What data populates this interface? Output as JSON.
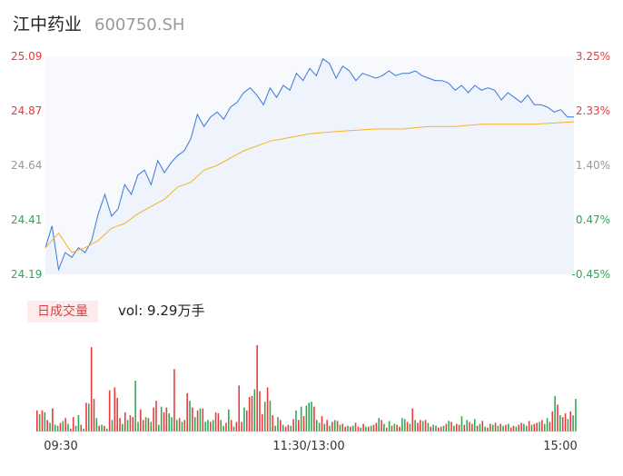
{
  "stock": {
    "name": "江中药业",
    "code": "600750.SH"
  },
  "volume_panel": {
    "tag_label": "日成交量",
    "vol_text": "vol: 9.29万手"
  },
  "colors": {
    "price_line": "#3a78d8",
    "avg_line": "#f5b324",
    "up": "#e8393c",
    "down": "#2fa84f",
    "neutral": "#999999"
  },
  "chart_data": [
    {
      "type": "line",
      "title": "",
      "x_ticks": [
        "09:30",
        "11:30/13:00",
        "15:00"
      ],
      "ylim": [
        24.19,
        25.09
      ],
      "y_ticks_left": [
        "25.09",
        "24.87",
        "24.64",
        "24.41",
        "24.19"
      ],
      "y_ticks_right": [
        "3.25%",
        "2.33%",
        "1.40%",
        "0.47%",
        "-0.45%"
      ],
      "grid": false,
      "series": [
        {
          "role": "price",
          "x": [
            0,
            3,
            6,
            9,
            12,
            15,
            18,
            21,
            24,
            27,
            30,
            33,
            36,
            39,
            42,
            45,
            48,
            51,
            54,
            57,
            60,
            63,
            66,
            69,
            72,
            75,
            78,
            81,
            84,
            87,
            90,
            93,
            96,
            99,
            102,
            105,
            108,
            111,
            114,
            117,
            120,
            123,
            126,
            129,
            132,
            135,
            138,
            141,
            144,
            147,
            150,
            153,
            156,
            159,
            162,
            165,
            168,
            171,
            174,
            177,
            180,
            183,
            186,
            189,
            192,
            195,
            198,
            201,
            204,
            207,
            210,
            213,
            216,
            219,
            222,
            225,
            228,
            231,
            234,
            237,
            240
          ],
          "y": [
            24.3,
            24.39,
            24.21,
            24.28,
            24.26,
            24.3,
            24.28,
            24.33,
            24.44,
            24.52,
            24.43,
            24.46,
            24.56,
            24.52,
            24.6,
            24.62,
            24.56,
            24.66,
            24.61,
            24.65,
            24.68,
            24.7,
            24.75,
            24.85,
            24.8,
            24.84,
            24.86,
            24.83,
            24.88,
            24.9,
            24.94,
            24.96,
            24.93,
            24.89,
            24.96,
            24.92,
            24.97,
            24.95,
            25.02,
            24.99,
            25.04,
            25.01,
            25.08,
            25.06,
            25.0,
            25.05,
            25.03,
            24.99,
            25.02,
            25.01,
            25.0,
            25.01,
            25.03,
            25.01,
            25.02,
            25.02,
            25.03,
            25.01,
            25.0,
            24.99,
            24.99,
            24.98,
            24.95,
            24.97,
            24.94,
            24.97,
            24.95,
            24.96,
            24.95,
            24.91,
            24.94,
            24.92,
            24.9,
            24.93,
            24.89,
            24.89,
            24.88,
            24.86,
            24.87,
            24.84,
            24.84
          ]
        },
        {
          "role": "average",
          "x": [
            0,
            6,
            12,
            18,
            24,
            30,
            36,
            42,
            48,
            54,
            60,
            66,
            72,
            78,
            84,
            90,
            96,
            102,
            108,
            114,
            120,
            132,
            150,
            162,
            174,
            186,
            198,
            210,
            222,
            240
          ],
          "y": [
            24.3,
            24.36,
            24.28,
            24.3,
            24.33,
            24.38,
            24.4,
            24.44,
            24.47,
            24.5,
            24.55,
            24.57,
            24.62,
            24.64,
            24.67,
            24.7,
            24.72,
            24.74,
            24.75,
            24.76,
            24.77,
            24.78,
            24.79,
            24.79,
            24.8,
            24.8,
            24.81,
            24.81,
            24.81,
            24.82
          ]
        }
      ]
    },
    {
      "type": "bar",
      "title": "",
      "x_ticks": [
        "09:30",
        "11:30/13:00",
        "15:00"
      ],
      "series": [
        {
          "name": "",
          "values": [
            22,
            18,
            22,
            20,
            12,
            9,
            24,
            7,
            6,
            9,
            11,
            14,
            8,
            3,
            15,
            6,
            17,
            7,
            3,
            30,
            29,
            88,
            34,
            14,
            6,
            7,
            6,
            3,
            43,
            12,
            46,
            35,
            14,
            8,
            20,
            12,
            17,
            15,
            53,
            10,
            23,
            12,
            15,
            14,
            10,
            25,
            32,
            7,
            26,
            20,
            25,
            19,
            15,
            65,
            12,
            14,
            10,
            12,
            40,
            32,
            25,
            15,
            22,
            24,
            24,
            10,
            12,
            10,
            12,
            20,
            19,
            12,
            6,
            9,
            23,
            12,
            5,
            10,
            48,
            10,
            25,
            22,
            36,
            37,
            44,
            90,
            42,
            18,
            31,
            46,
            32,
            17,
            6,
            15,
            12,
            7,
            5,
            7,
            6,
            13,
            22,
            12,
            26,
            16,
            27,
            30,
            31,
            26,
            12,
            9,
            16,
            8,
            12,
            6,
            10,
            12,
            11,
            7,
            8,
            5,
            6,
            5,
            6,
            9,
            5,
            4,
            8,
            5,
            5,
            6,
            7,
            9,
            14,
            12,
            8,
            4,
            11,
            6,
            8,
            7,
            5,
            14,
            13,
            10,
            8,
            24,
            12,
            9,
            12,
            11,
            12,
            9,
            5,
            7,
            6,
            4,
            5,
            6,
            8,
            11,
            10,
            6,
            8,
            7,
            16,
            7,
            12,
            10,
            8,
            13,
            6,
            8,
            11,
            5,
            4,
            8,
            7,
            9,
            6,
            8,
            6,
            7,
            8,
            4,
            6,
            5,
            7,
            9,
            8,
            6,
            11,
            7,
            8,
            9,
            10,
            12,
            8,
            14,
            10,
            21,
            37,
            28,
            17,
            15,
            19,
            13,
            21,
            17,
            34
          ],
          "direction": [
            1,
            -1,
            1,
            -1,
            1,
            -1,
            1,
            -1,
            -1,
            1,
            -1,
            1,
            -1,
            1,
            1,
            -1,
            -1,
            1,
            -1,
            1,
            -1,
            1,
            1,
            -1,
            1,
            -1,
            1,
            -1,
            1,
            -1,
            1,
            1,
            1,
            -1,
            1,
            -1,
            1,
            1,
            -1,
            -1,
            1,
            1,
            -1,
            1,
            -1,
            1,
            1,
            -1,
            -1,
            1,
            1,
            -1,
            -1,
            1,
            -1,
            1,
            -1,
            1,
            1,
            -1,
            1,
            -1,
            1,
            -1,
            1,
            -1,
            -1,
            1,
            -1,
            1,
            1,
            -1,
            -1,
            1,
            -1,
            1,
            -1,
            1,
            1,
            1,
            -1,
            1,
            1,
            1,
            -1,
            1,
            1,
            1,
            -1,
            1,
            -1,
            1,
            -1,
            -1,
            1,
            -1,
            1,
            1,
            -1,
            1,
            -1,
            1,
            -1,
            1,
            -1,
            -1,
            -1,
            1,
            -1,
            -1,
            1,
            -1,
            1,
            -1,
            1,
            -1,
            1,
            -1,
            1,
            1,
            -1,
            1,
            -1,
            1,
            1,
            -1,
            1,
            -1,
            1,
            -1,
            1,
            1,
            -1,
            1,
            -1,
            1,
            -1,
            1,
            -1,
            1,
            1,
            -1,
            -1,
            1,
            -1,
            1,
            -1,
            1,
            1,
            -1,
            1,
            -1,
            1,
            -1,
            -1,
            1,
            1,
            -1,
            1,
            -1,
            1,
            -1,
            1,
            1,
            -1,
            1,
            -1,
            1,
            1,
            -1,
            1,
            -1,
            1,
            -1,
            1,
            1,
            -1,
            1,
            -1,
            1,
            -1,
            1,
            -1,
            1,
            1,
            -1,
            1,
            1,
            -1,
            -1,
            1,
            -1,
            1,
            1,
            -1,
            1,
            -1,
            -1,
            1,
            1,
            -1,
            1,
            -1,
            1,
            1,
            -1,
            1
          ]
        }
      ]
    }
  ]
}
